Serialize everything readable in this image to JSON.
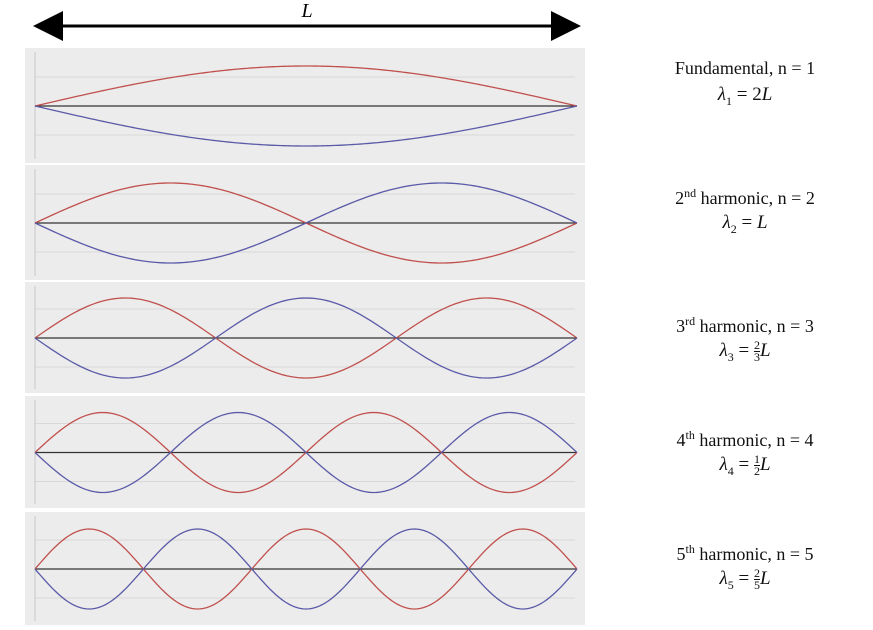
{
  "top_label": "L",
  "panels": [
    {
      "label": "Fundamental, n = ",
      "n": 1,
      "formula": {
        "symbol": "λ",
        "equals": " = ",
        "coefficient": "2",
        "variable": "L"
      }
    },
    {
      "ordinal": "2",
      "suffix": "nd",
      "label": " harmonic, n = ",
      "n": 2,
      "formula": {
        "symbol": "λ",
        "equals": " = ",
        "variable": "L"
      }
    },
    {
      "ordinal": "3",
      "suffix": "rd",
      "label": " harmonic, n = ",
      "n": 3,
      "formula": {
        "symbol": "λ",
        "equals": " = ",
        "numerator": "2",
        "denominator": "3",
        "variable": "L"
      }
    },
    {
      "ordinal": "4",
      "suffix": "th",
      "label": " harmonic, n = ",
      "n": 4,
      "formula": {
        "symbol": "λ",
        "equals": " = ",
        "numerator": "1",
        "denominator": "2",
        "variable": "L"
      }
    },
    {
      "ordinal": "5",
      "suffix": "th",
      "label": " harmonic, n = ",
      "n": 5,
      "formula": {
        "symbol": "λ",
        "equals": " = ",
        "numerator": "2",
        "denominator": "5",
        "variable": "L"
      }
    }
  ]
}
